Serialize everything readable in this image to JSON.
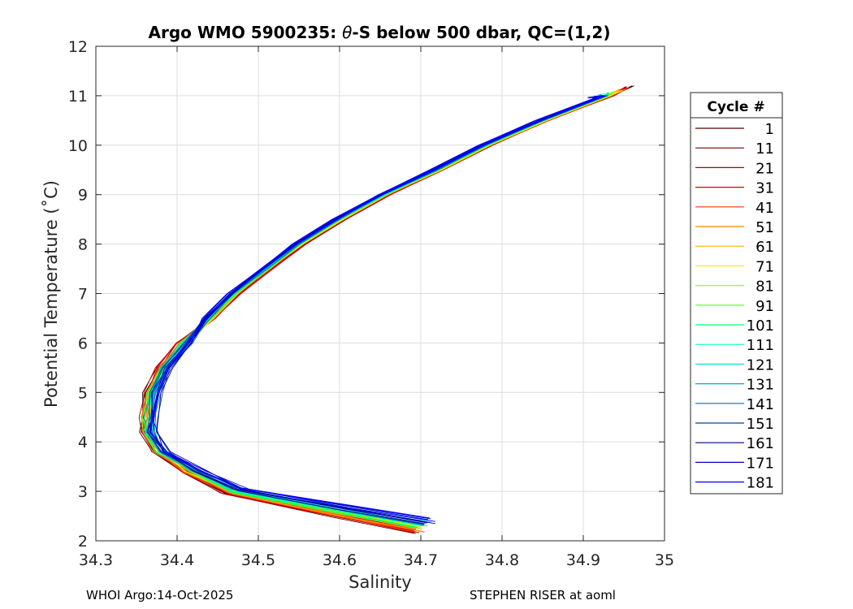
{
  "chart_data": {
    "type": "line",
    "title_prefix": "Argo WMO 5900235: ",
    "title_theta": "θ",
    "title_suffix": "-S below 500 dbar,  QC=(1,2)",
    "xlabel": "Salinity",
    "ylabel": "Potential Temperature (˚C)",
    "xlim": [
      34.3,
      35.0
    ],
    "ylim": [
      2,
      12
    ],
    "xticks": [
      "34.3",
      "34.4",
      "34.5",
      "34.6",
      "34.7",
      "34.8",
      "34.9",
      "35"
    ],
    "yticks": [
      "2",
      "3",
      "4",
      "5",
      "6",
      "7",
      "8",
      "9",
      "10",
      "11",
      "12"
    ],
    "grid": true,
    "legend": {
      "title": "Cycle #",
      "placement": "outside-right",
      "entries": [
        "1",
        "11",
        "21",
        "31",
        "41",
        "51",
        "61",
        "71",
        "81",
        "91",
        "101",
        "111",
        "121",
        "131",
        "141",
        "151",
        "161",
        "171",
        "181"
      ],
      "colors": [
        "#4a0000",
        "#7a0000",
        "#b00000",
        "#e00000",
        "#ff3300",
        "#ff7f00",
        "#ffb000",
        "#ffee00",
        "#aaff00",
        "#55ff22",
        "#00ff66",
        "#00ffaa",
        "#00e0e0",
        "#00a8d8",
        "#0070c0",
        "#0040a0",
        "#000090",
        "#0000c8",
        "#0000ff"
      ]
    },
    "series_shape": {
      "y": [
        2.3,
        2.6,
        3.0,
        3.4,
        3.8,
        4.2,
        4.5,
        5.0,
        5.5,
        6.0,
        6.5,
        7.0,
        7.5,
        8.0,
        8.5,
        9.0,
        9.5,
        10.0,
        10.5,
        11.0,
        11.2
      ],
      "x": [
        34.7,
        34.6,
        34.47,
        34.42,
        34.38,
        34.365,
        34.365,
        34.37,
        34.385,
        34.41,
        34.44,
        34.47,
        34.51,
        34.55,
        34.6,
        34.655,
        34.72,
        34.78,
        34.85,
        34.93,
        34.96
      ]
    }
  },
  "footer": {
    "left": "WHOI Argo:14-Oct-2025",
    "right": "STEPHEN RISER at aoml"
  }
}
